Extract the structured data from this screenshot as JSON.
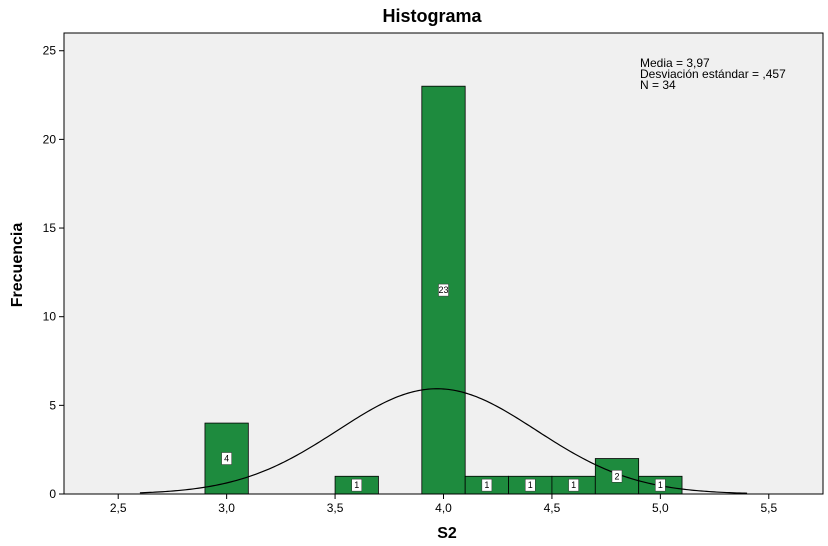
{
  "chart_data": {
    "type": "bar",
    "title": "Histograma",
    "xlabel": "S2",
    "ylabel": "Frecuencia",
    "xlim": [
      2.25,
      5.75
    ],
    "ylim": [
      0,
      26
    ],
    "x_ticks": [
      2.5,
      3.0,
      3.5,
      4.0,
      4.5,
      5.0,
      5.5
    ],
    "x_tick_labels": [
      "2,5",
      "3,0",
      "3,5",
      "4,0",
      "4,5",
      "5,0",
      "5,5"
    ],
    "y_ticks": [
      0,
      5,
      10,
      15,
      20,
      25
    ],
    "y_tick_labels": [
      "0",
      "5",
      "10",
      "15",
      "20",
      "25"
    ],
    "bin_width": 0.2,
    "bins": [
      {
        "center": 3.0,
        "count": 4,
        "label": "4"
      },
      {
        "center": 3.6,
        "count": 1,
        "label": "1"
      },
      {
        "center": 4.0,
        "count": 23,
        "label": "23"
      },
      {
        "center": 4.2,
        "count": 1,
        "label": "1"
      },
      {
        "center": 4.4,
        "count": 1,
        "label": "1"
      },
      {
        "center": 4.6,
        "count": 1,
        "label": "1"
      },
      {
        "center": 4.8,
        "count": 2,
        "label": "2"
      },
      {
        "center": 5.0,
        "count": 1,
        "label": "1"
      }
    ],
    "normal_curve": {
      "mean": 3.97,
      "sd": 0.457,
      "n": 34
    },
    "stats": {
      "mean_text": "Media = 3,97",
      "sd_text": "Desviación estándar = ,457",
      "n_text": "N = 34"
    },
    "grid": false,
    "legend": "none"
  },
  "colors": {
    "bar_fill": "#1e8b3e",
    "bar_stroke": "#000000",
    "plot_background": "#f0f0f0",
    "curve": "#000000"
  }
}
